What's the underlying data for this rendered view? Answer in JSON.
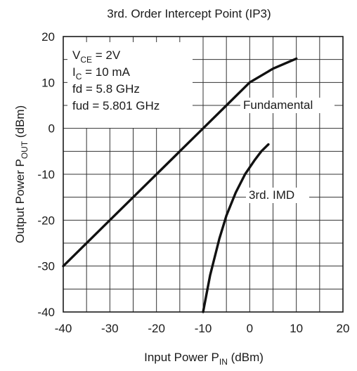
{
  "chart_data": {
    "type": "line",
    "title": "3rd. Order Intercept Point (IP3)",
    "xlabel": {
      "main": "Input Power   P",
      "sub": "IN",
      "unit": " (dBm)"
    },
    "ylabel": {
      "main": "Output Power   P",
      "sub": "OUT",
      "unit": " (dBm)"
    },
    "xlim": [
      -40,
      20
    ],
    "ylim": [
      -40,
      20
    ],
    "x_ticks": [
      -40,
      -30,
      -20,
      -10,
      0,
      10,
      20
    ],
    "x_tick_labels": [
      "-40",
      "-30",
      "-20",
      "-10",
      "0",
      "10",
      "20"
    ],
    "y_ticks": [
      -40,
      -30,
      -20,
      -10,
      0,
      10,
      20
    ],
    "y_tick_labels": [
      "-40",
      "-30",
      "-20",
      "-10",
      "0",
      "10",
      "20"
    ],
    "grid": true,
    "conditions": [
      {
        "main": "V",
        "sub": "CE",
        "rest": " = 2V"
      },
      {
        "main": "I",
        "sub": "C",
        "rest": " = 10 mA"
      },
      {
        "main": "fd = 5.8 GHz",
        "sub": "",
        "rest": ""
      },
      {
        "main": "fud = 5.801 GHz",
        "sub": "",
        "rest": ""
      }
    ],
    "series": [
      {
        "name": "Fundamental",
        "x": [
          -40,
          -30,
          -20,
          -10,
          -5,
          0,
          5,
          10
        ],
        "y": [
          -30,
          -20,
          -10,
          0,
          5,
          10,
          13,
          15.2
        ]
      },
      {
        "name": "3rd. IMD",
        "x": [
          -10,
          -8.5,
          -6.5,
          -5,
          -3,
          -1,
          1,
          2.5,
          4
        ],
        "y": [
          -40,
          -32,
          -24,
          -19,
          -14,
          -10,
          -7,
          -5,
          -3.5
        ]
      }
    ]
  }
}
